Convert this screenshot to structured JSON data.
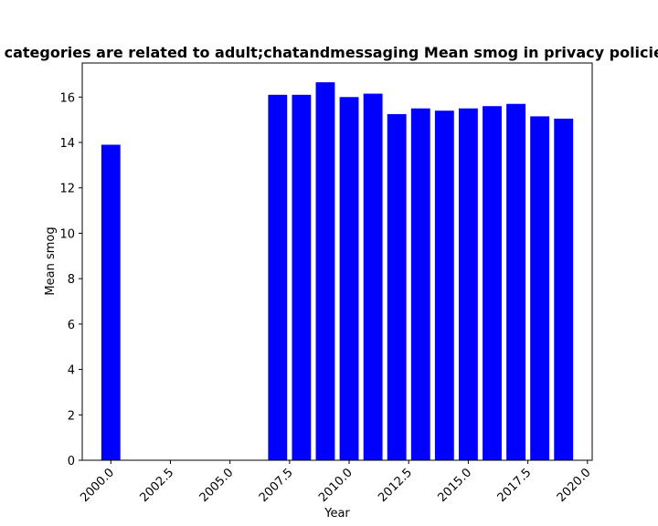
{
  "chart_data": {
    "type": "bar",
    "title": "categories are related to adult;chatandmessaging Mean smog in privacy policies",
    "xlabel": "Year",
    "ylabel": "Mean smog",
    "x": [
      2000,
      2007,
      2008,
      2009,
      2010,
      2011,
      2012,
      2013,
      2014,
      2015,
      2016,
      2017,
      2018,
      2019
    ],
    "values": [
      13.9,
      16.1,
      16.1,
      16.65,
      16.0,
      16.15,
      15.25,
      15.5,
      15.4,
      15.5,
      15.6,
      15.7,
      15.15,
      15.05
    ],
    "xlim": [
      1998.8,
      2020.2
    ],
    "ylim": [
      0,
      17.5
    ],
    "xticks": [
      2000.0,
      2002.5,
      2005.0,
      2007.5,
      2010.0,
      2012.5,
      2015.0,
      2017.5,
      2020.0
    ],
    "xtick_labels": [
      "2000.0",
      "2002.5",
      "2005.0",
      "2007.5",
      "2010.0",
      "2012.5",
      "2015.0",
      "2017.5",
      "2020.0"
    ],
    "yticks": [
      0,
      2,
      4,
      6,
      8,
      10,
      12,
      14,
      16
    ],
    "ytick_labels": [
      "0",
      "2",
      "4",
      "6",
      "8",
      "10",
      "12",
      "14",
      "16"
    ],
    "bar_width": 0.8,
    "bar_color": "#0000ff",
    "grid": false,
    "legend": "none"
  }
}
